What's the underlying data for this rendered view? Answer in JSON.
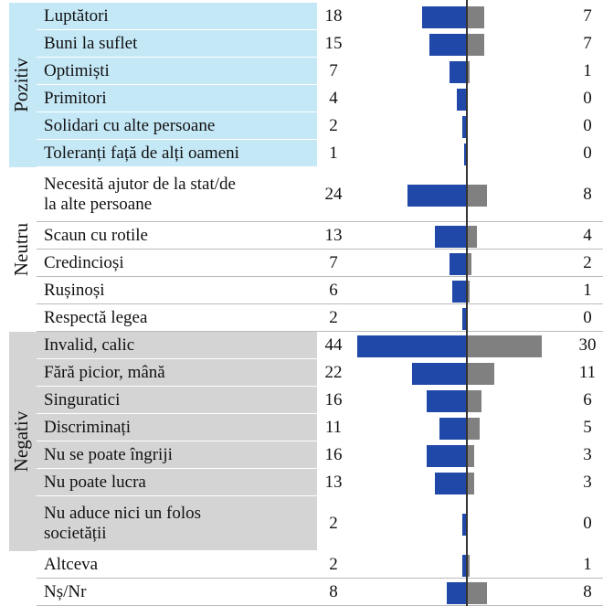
{
  "chart_data": {
    "type": "butterfly",
    "left_color": "#1f48a8",
    "right_color": "#808080",
    "groups": [
      {
        "name": "Pozitiv",
        "background": "#c5e8f7",
        "categories": [
          "Luptători",
          "Buni la suflet",
          "Optimiști",
          "Primitori",
          "Solidari cu alte persoane",
          "Toleranți față de alți oameni"
        ],
        "left": [
          18,
          15,
          7,
          4,
          2,
          1
        ],
        "right": [
          7,
          7,
          1,
          0,
          0,
          0
        ]
      },
      {
        "name": "Neutru",
        "background": "#ffffff",
        "categories": [
          "Necesită ajutor de la stat/de\nla alte persoane",
          "Scaun cu rotile",
          "Credincioși",
          "Rușinoși",
          "Respectă legea"
        ],
        "left": [
          24,
          13,
          7,
          6,
          2
        ],
        "right": [
          8,
          4,
          2,
          1,
          0
        ]
      },
      {
        "name": "Negativ",
        "background": "#d4d4d4",
        "categories": [
          "Invalid, calic",
          "Fără picior, mână",
          "Singuratici",
          "Discriminați",
          "Nu se poate îngriji",
          "Nu poate lucra",
          "Nu aduce nici un folos\nsocietății"
        ],
        "left": [
          44,
          22,
          16,
          11,
          16,
          13,
          2
        ],
        "right": [
          30,
          11,
          6,
          5,
          3,
          3,
          0
        ]
      },
      {
        "background": "#ffffff",
        "categories": [
          "Altceva",
          "Nș/Nr"
        ],
        "left": [
          2,
          8
        ],
        "right": [
          1,
          8
        ]
      }
    ]
  }
}
